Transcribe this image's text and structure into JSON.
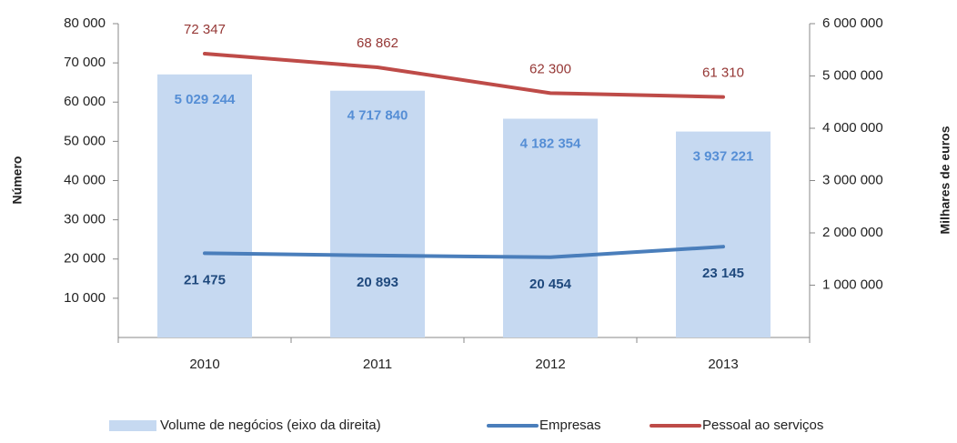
{
  "chart_data": {
    "type": "combo",
    "categories": [
      "2010",
      "2011",
      "2012",
      "2013"
    ],
    "ylabel": "Número",
    "y2label": "Milhares de euros",
    "ylim": [
      0,
      80000
    ],
    "yticks": [
      {
        "value": 10000,
        "label": "10 000"
      },
      {
        "value": 20000,
        "label": "20 000"
      },
      {
        "value": 30000,
        "label": "30 000"
      },
      {
        "value": 40000,
        "label": "40 000"
      },
      {
        "value": 50000,
        "label": "50 000"
      },
      {
        "value": 60000,
        "label": "60 000"
      },
      {
        "value": 70000,
        "label": "70 000"
      },
      {
        "value": 80000,
        "label": "80 000"
      }
    ],
    "y2lim": [
      0,
      6000000
    ],
    "y2ticks": [
      {
        "value": 1000000,
        "label": "1 000 000"
      },
      {
        "value": 2000000,
        "label": "2 000 000"
      },
      {
        "value": 3000000,
        "label": "3 000 000"
      },
      {
        "value": 4000000,
        "label": "4 000 000"
      },
      {
        "value": 5000000,
        "label": "5 000 000"
      },
      {
        "value": 6000000,
        "label": "6 000 000"
      }
    ],
    "legend": "bottom",
    "series": [
      {
        "name": "Volume de negócios (eixo da direita)",
        "type": "bar",
        "axis": "y2",
        "color": "#c6d9f1",
        "label_color": "#558ed5",
        "values": [
          5029244,
          4717840,
          4182354,
          3937221
        ],
        "value_labels": [
          "5 029 244",
          "4 717 840",
          "4 182 354",
          "3 937 221"
        ]
      },
      {
        "name": "Empresas",
        "type": "line",
        "axis": "y",
        "color": "#4a7ebb",
        "label_color": "#1f497d",
        "values": [
          21475,
          20893,
          20454,
          23145
        ],
        "value_labels": [
          "21 475",
          "20 893",
          "20 454",
          "23 145"
        ]
      },
      {
        "name": "Pessoal ao serviços",
        "type": "line",
        "axis": "y",
        "color": "#be4b48",
        "label_color": "#953735",
        "values": [
          72347,
          68862,
          62300,
          61310
        ],
        "value_labels": [
          "72 347",
          "68 862",
          "62 300",
          "61 310"
        ]
      }
    ]
  }
}
